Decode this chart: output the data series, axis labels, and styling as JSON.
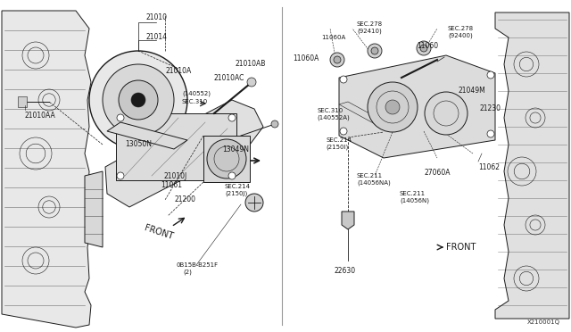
{
  "bg_color": "#f0f0f0",
  "fig_width": 6.4,
  "fig_height": 3.72,
  "dpi": 100,
  "watermark": "X210001Q",
  "line_color": [
    30,
    30,
    30
  ],
  "bg_rgb": [
    240,
    240,
    240
  ],
  "white": [
    255,
    255,
    255
  ]
}
